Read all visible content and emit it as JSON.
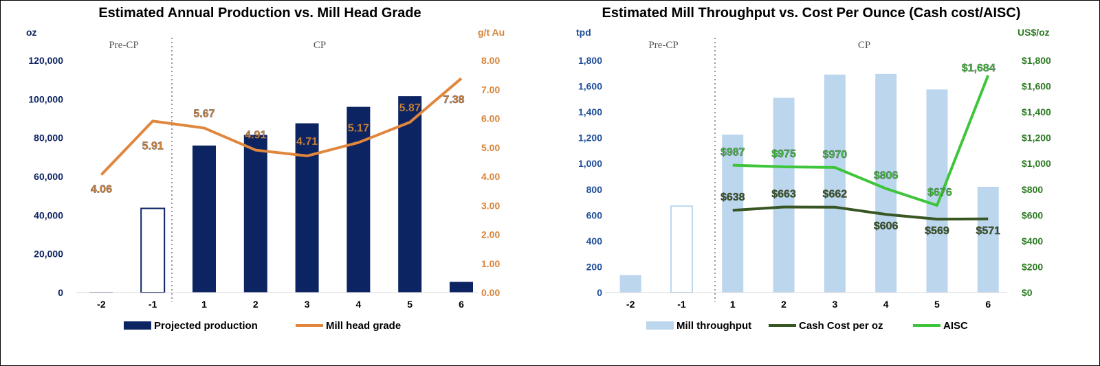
{
  "chart_data": [
    {
      "type": "bar",
      "title": "Estimated Annual Production vs. Mill Head Grade",
      "left_axis_unit": "oz",
      "right_axis_unit": "g/t Au",
      "regions": [
        "Pre-CP",
        "CP"
      ],
      "categories": [
        "-2",
        "-1",
        "1",
        "2",
        "3",
        "4",
        "5",
        "6"
      ],
      "ylim": [
        0,
        120000
      ],
      "y2lim": [
        0,
        8
      ],
      "yticks": [
        "0",
        "20,000",
        "40,000",
        "60,000",
        "80,000",
        "100,000",
        "120,000"
      ],
      "y2ticks": [
        "0.00",
        "1.00",
        "2.00",
        "3.00",
        "4.00",
        "5.00",
        "6.00",
        "7.00",
        "8.00"
      ],
      "series": [
        {
          "name": "Projected production",
          "kind": "bar",
          "axis": "left",
          "color": "#0d2463",
          "values": [
            300,
            43500,
            76000,
            81500,
            87500,
            96000,
            101500,
            5500
          ],
          "hollow": [
            false,
            true,
            false,
            false,
            false,
            false,
            false,
            false
          ]
        },
        {
          "name": "Mill head grade",
          "kind": "line",
          "axis": "right",
          "color": "#e0863d",
          "values": [
            4.06,
            5.91,
            5.67,
            4.91,
            4.71,
            5.17,
            5.87,
            7.38
          ],
          "line_values": [
            4.06,
            5.91,
            5.67,
            4.91,
            4.71,
            5.17,
            5.87,
            7.38
          ],
          "labels": [
            "4.06",
            "5.91",
            "5.67",
            "4.91",
            "4.71",
            "5.17",
            "5.87",
            "7.38"
          ]
        }
      ],
      "grid": false,
      "legend": "bottom"
    },
    {
      "type": "bar",
      "title": "Estimated Mill Throughput vs. Cost Per Ounce (Cash cost/AISC)",
      "left_axis_unit": "tpd",
      "right_axis_unit": "US$/oz",
      "regions": [
        "Pre-CP",
        "CP"
      ],
      "categories": [
        "-2",
        "-1",
        "1",
        "2",
        "3",
        "4",
        "5",
        "6"
      ],
      "ylim": [
        0,
        1800
      ],
      "y2lim": [
        0,
        1800
      ],
      "yticks": [
        "0",
        "200",
        "400",
        "600",
        "800",
        "1,000",
        "1,200",
        "1,400",
        "1,600",
        "1,800"
      ],
      "y2ticks": [
        "$0",
        "$200",
        "$400",
        "$600",
        "$800",
        "$1,000",
        "$1,200",
        "$1,400",
        "$1,600",
        "$1,800"
      ],
      "series": [
        {
          "name": "Mill throughput",
          "kind": "bar",
          "axis": "left",
          "color": "#bcd6ee",
          "values": [
            135,
            670,
            1225,
            1510,
            1690,
            1695,
            1575,
            820
          ],
          "hollow": [
            false,
            true,
            false,
            false,
            false,
            false,
            false,
            false
          ]
        },
        {
          "name": "Cash Cost per oz",
          "kind": "line",
          "axis": "right",
          "color": "#375623",
          "values": [
            null,
            null,
            638,
            663,
            662,
            606,
            569,
            571
          ],
          "labels": [
            "",
            "",
            "$638",
            "$663",
            "$662",
            "$606",
            "$569",
            "$571"
          ]
        },
        {
          "name": "AISC",
          "kind": "line",
          "axis": "right",
          "color": "#3fc53c",
          "values": [
            null,
            null,
            987,
            975,
            970,
            806,
            676,
            1684
          ],
          "labels": [
            "",
            "",
            "$987",
            "$975",
            "$970",
            "$806",
            "$676",
            "$1,684"
          ]
        }
      ],
      "grid": false,
      "legend": "bottom"
    }
  ]
}
